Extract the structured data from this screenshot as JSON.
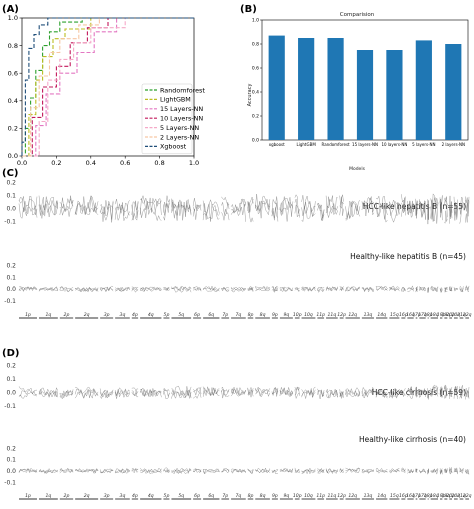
{
  "panels": {
    "a": "(A)",
    "b": "(B)",
    "c": "(C)",
    "d": "(D)"
  },
  "chart_data": [
    {
      "type": "line",
      "panel": "A",
      "xlabel": "",
      "ylabel": "",
      "xlim": [
        0.0,
        1.0
      ],
      "ylim": [
        0.0,
        1.0
      ],
      "xticks": [
        "0.0",
        "0.2",
        "0.4",
        "0.6",
        "0.8",
        "1.0"
      ],
      "yticks": [
        "0.0",
        "0.2",
        "0.4",
        "0.6",
        "0.8",
        "1.0"
      ],
      "grid": false,
      "legend_position": "lower-right",
      "series": [
        {
          "name": "Randomforest",
          "color": "#2ca02c",
          "x": [
            0,
            0.02,
            0.02,
            0.05,
            0.05,
            0.08,
            0.08,
            0.12,
            0.12,
            0.16,
            0.16,
            0.22,
            0.22,
            0.35,
            0.35,
            1.0
          ],
          "y": [
            0,
            0,
            0.2,
            0.2,
            0.42,
            0.42,
            0.62,
            0.62,
            0.8,
            0.8,
            0.9,
            0.9,
            0.97,
            0.97,
            1.0,
            1.0
          ]
        },
        {
          "name": "LightGBM",
          "color": "#bcbd22",
          "x": [
            0,
            0.04,
            0.04,
            0.08,
            0.08,
            0.12,
            0.12,
            0.18,
            0.18,
            0.25,
            0.25,
            0.4,
            0.4,
            1.0
          ],
          "y": [
            0,
            0,
            0.3,
            0.3,
            0.55,
            0.55,
            0.72,
            0.72,
            0.85,
            0.85,
            0.92,
            0.92,
            1.0,
            1.0
          ]
        },
        {
          "name": "15 Layers-NN",
          "color": "#e377c2",
          "x": [
            0,
            0.08,
            0.08,
            0.14,
            0.14,
            0.22,
            0.22,
            0.32,
            0.32,
            0.42,
            0.42,
            0.55,
            0.55,
            1.0
          ],
          "y": [
            0,
            0,
            0.22,
            0.22,
            0.45,
            0.45,
            0.6,
            0.6,
            0.75,
            0.75,
            0.9,
            0.9,
            1.0,
            1.0
          ]
        },
        {
          "name": "10 Layers-NN",
          "color": "#c2185b",
          "x": [
            0,
            0.06,
            0.06,
            0.12,
            0.12,
            0.2,
            0.2,
            0.28,
            0.28,
            0.38,
            0.38,
            0.5,
            0.5,
            1.0
          ],
          "y": [
            0,
            0,
            0.28,
            0.28,
            0.5,
            0.5,
            0.65,
            0.65,
            0.82,
            0.82,
            0.93,
            0.93,
            1.0,
            1.0
          ]
        },
        {
          "name": "5 Layers-NN",
          "color": "#f5a9c8",
          "x": [
            0,
            0.1,
            0.1,
            0.15,
            0.15,
            0.22,
            0.22,
            0.3,
            0.3,
            0.4,
            0.4,
            0.6,
            0.6,
            1.0
          ],
          "y": [
            0,
            0,
            0.25,
            0.25,
            0.55,
            0.55,
            0.7,
            0.7,
            0.82,
            0.82,
            0.93,
            0.93,
            1.0,
            1.0
          ]
        },
        {
          "name": "2 Layers-NN",
          "color": "#f7c6a3",
          "x": [
            0,
            0.05,
            0.05,
            0.1,
            0.1,
            0.16,
            0.16,
            0.22,
            0.22,
            0.33,
            0.33,
            0.45,
            0.45,
            1.0
          ],
          "y": [
            0,
            0,
            0.35,
            0.35,
            0.58,
            0.58,
            0.75,
            0.75,
            0.85,
            0.85,
            0.95,
            0.95,
            1.0,
            1.0
          ]
        },
        {
          "name": "Xgboost",
          "color": "#1f4e79",
          "x": [
            0,
            0.0,
            0.02,
            0.02,
            0.04,
            0.04,
            0.07,
            0.07,
            0.1,
            0.1,
            0.15,
            0.15,
            1.0
          ],
          "y": [
            0,
            0.1,
            0.1,
            0.55,
            0.55,
            0.78,
            0.78,
            0.88,
            0.88,
            0.95,
            0.95,
            1.0,
            1.0
          ]
        }
      ]
    },
    {
      "type": "bar",
      "panel": "B",
      "title": "Comparision",
      "xlabel": "Models",
      "ylabel": "Accuracy",
      "ylim": [
        0.0,
        1.0
      ],
      "yticks": [
        "0.0",
        "0.2",
        "0.4",
        "0.6",
        "0.8",
        "1.0"
      ],
      "color": "#1f77b4",
      "categories": [
        "xgboost",
        "LightGBM",
        "Randomforest",
        "15 layers-NN",
        "10 layers-NN",
        "5 layers-NN",
        "2 layers-NN"
      ],
      "values": [
        0.87,
        0.85,
        0.85,
        0.75,
        0.75,
        0.83,
        0.8
      ]
    },
    {
      "type": "line",
      "panel": "C-top",
      "annotation": "HCC-like hepatitis B (n=55)",
      "yticks": [
        "-0.1",
        "0.0",
        "0.1",
        "0.2"
      ],
      "ylim": [
        -0.15,
        0.22
      ],
      "line_color": "#6f6f6f"
    },
    {
      "type": "line",
      "panel": "C-bottom",
      "annotation": "Healthy-like hepatitis B (n=45)",
      "yticks": [
        "-0.1",
        "0.0",
        "0.1",
        "0.2"
      ],
      "ylim": [
        -0.15,
        0.22
      ],
      "line_color": "#6f6f6f",
      "chromosome_arms": [
        "1p",
        "1q",
        "2p",
        "2q",
        "3p",
        "3q",
        "4p",
        "4q",
        "5p",
        "5q",
        "6p",
        "6q",
        "7p",
        "7q",
        "8p",
        "8q",
        "9p",
        "9q",
        "10p",
        "10q",
        "11p",
        "11q",
        "12p",
        "12q",
        "13q",
        "14q",
        "15q",
        "16p",
        "16q",
        "17p",
        "17q",
        "18p",
        "18q",
        "19p",
        "19q",
        "20p",
        "20q",
        "21q",
        "22q"
      ]
    },
    {
      "type": "line",
      "panel": "D-top",
      "annotation": "HCC-like cirrhosis (n=59)",
      "yticks": [
        "-0.1",
        "0.0",
        "0.1",
        "0.2"
      ],
      "ylim": [
        -0.15,
        0.22
      ],
      "line_color": "#6f6f6f"
    },
    {
      "type": "line",
      "panel": "D-bottom",
      "annotation": "Healthy-like cirrhosis (n=40)",
      "yticks": [
        "-0.1",
        "0.0",
        "0.1",
        "0.2"
      ],
      "ylim": [
        -0.15,
        0.22
      ],
      "line_color": "#6f6f6f",
      "chromosome_arms": [
        "1p",
        "1q",
        "2p",
        "2q",
        "3p",
        "3q",
        "4p",
        "4q",
        "5p",
        "5q",
        "6p",
        "6q",
        "7p",
        "7q",
        "8p",
        "8q",
        "9p",
        "9q",
        "10p",
        "10q",
        "11p",
        "11q",
        "12p",
        "12q",
        "13q",
        "14q",
        "15q",
        "16p",
        "16q",
        "17p",
        "17q",
        "18p",
        "18q",
        "19p",
        "19q",
        "20p",
        "20q",
        "21q",
        "22q"
      ]
    }
  ]
}
